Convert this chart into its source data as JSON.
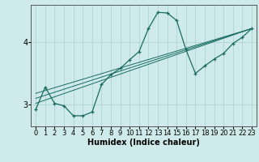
{
  "xlabel": "Humidex (Indice chaleur)",
  "background_color": "#ceeaea",
  "line_color": "#1a6b60",
  "grid_color": "#aacfcf",
  "xlim": [
    -0.5,
    23.5
  ],
  "ylim": [
    2.65,
    4.6
  ],
  "yticks": [
    3,
    4
  ],
  "xticks": [
    0,
    1,
    2,
    3,
    4,
    5,
    6,
    7,
    8,
    9,
    10,
    11,
    12,
    13,
    14,
    15,
    16,
    17,
    18,
    19,
    20,
    21,
    22,
    23
  ],
  "series": {
    "main": {
      "x": [
        0,
        1,
        2,
        3,
        4,
        5,
        6,
        7,
        8,
        9,
        10,
        11,
        12,
        13,
        14,
        15,
        16,
        17,
        18,
        19,
        20,
        21,
        22,
        23
      ],
      "y": [
        2.92,
        3.28,
        3.02,
        2.98,
        2.82,
        2.82,
        2.88,
        3.32,
        3.48,
        3.58,
        3.72,
        3.85,
        4.22,
        4.48,
        4.47,
        4.35,
        3.88,
        3.5,
        3.62,
        3.73,
        3.82,
        3.98,
        4.08,
        4.22
      ]
    },
    "linear1": {
      "x": [
        0,
        23
      ],
      "y": [
        3.02,
        4.22
      ]
    },
    "linear2": {
      "x": [
        0,
        23
      ],
      "y": [
        3.1,
        4.22
      ]
    },
    "linear3": {
      "x": [
        0,
        23
      ],
      "y": [
        3.18,
        4.22
      ]
    }
  }
}
